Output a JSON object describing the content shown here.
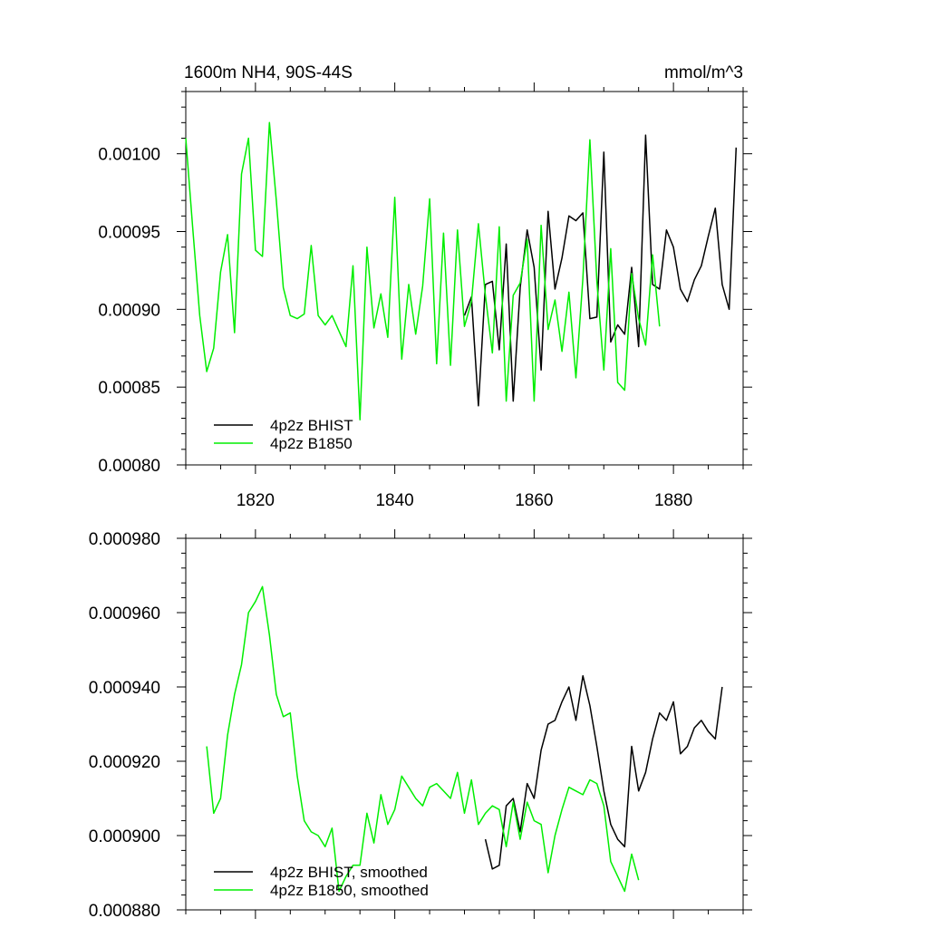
{
  "chart_data": [
    {
      "type": "line",
      "title": "1600m NH4, 90S-44S",
      "units": "mmol/m^3",
      "xlim": [
        1810,
        1890
      ],
      "ylim": [
        0.0008,
        0.00104
      ],
      "xticks": [
        1820,
        1840,
        1860,
        1880
      ],
      "xtick_labels": [
        "1820",
        "1840",
        "1860",
        "1880"
      ],
      "yticks": [
        0.0008,
        0.00085,
        0.0009,
        0.00095,
        0.001
      ],
      "ytick_labels": [
        "0.00080",
        "0.00085",
        "0.00090",
        "0.00095",
        "0.00100"
      ],
      "grid": false,
      "legend_position": "bottom-left",
      "series": [
        {
          "name": "4p2z BHIST",
          "color": "#000000",
          "x0": 1850,
          "values": [
            0.000896,
            0.000908,
            0.000838,
            0.000916,
            0.000918,
            0.000874,
            0.000942,
            0.000841,
            0.000914,
            0.000951,
            0.000927,
            0.000861,
            0.000963,
            0.000913,
            0.000933,
            0.00096,
            0.000957,
            0.000962,
            0.000894,
            0.000895,
            0.001001,
            0.000879,
            0.00089,
            0.000884,
            0.000927,
            0.000876,
            0.001012,
            0.000916,
            0.000913,
            0.000951,
            0.00094,
            0.000913,
            0.000905,
            0.000919,
            0.000928,
            0.000947,
            0.000965,
            0.000916,
            0.0009,
            0.001004
          ]
        },
        {
          "name": "4p2z B1850",
          "color": "#00ee00",
          "x0": 1810,
          "values": [
            0.00101,
            0.000952,
            0.000896,
            0.00086,
            0.000875,
            0.000924,
            0.000948,
            0.000885,
            0.000987,
            0.00101,
            0.000938,
            0.000934,
            0.00102,
            0.00097,
            0.000914,
            0.000896,
            0.000894,
            0.000897,
            0.000941,
            0.000896,
            0.00089,
            0.000896,
            0.000886,
            0.000876,
            0.000928,
            0.000829,
            0.00094,
            0.000888,
            0.00091,
            0.000882,
            0.000972,
            0.000868,
            0.000916,
            0.000884,
            0.000915,
            0.000971,
            0.000865,
            0.000949,
            0.000864,
            0.000951,
            0.000889,
            0.000905,
            0.000955,
            0.000909,
            0.000872,
            0.000953,
            0.000841,
            0.000909,
            0.000917,
            0.000945,
            0.000841,
            0.000954,
            0.000887,
            0.000906,
            0.000873,
            0.000911,
            0.000856,
            0.00092,
            0.001009,
            0.000918,
            0.000861,
            0.000939,
            0.000853,
            0.000848,
            0.000923,
            0.000894,
            0.000877,
            0.000935,
            0.000889
          ]
        }
      ]
    },
    {
      "type": "line",
      "title": "",
      "xlim": [
        1810,
        1890
      ],
      "ylim": [
        0.00088,
        0.00098
      ],
      "xticks": [
        1820,
        1840,
        1860,
        1880
      ],
      "yticks": [
        0.00088,
        0.0009,
        0.00092,
        0.00094,
        0.00096,
        0.00098
      ],
      "ytick_labels": [
        "0.000880",
        "0.000900",
        "0.000920",
        "0.000940",
        "0.000960",
        "0.000980"
      ],
      "grid": false,
      "legend_position": "bottom-left",
      "series": [
        {
          "name": "4p2z BHIST, smoothed",
          "color": "#000000",
          "x0": 1853,
          "values": [
            0.000899,
            0.000891,
            0.000892,
            0.000908,
            0.00091,
            0.000901,
            0.000914,
            0.00091,
            0.000923,
            0.00093,
            0.000931,
            0.000936,
            0.00094,
            0.000931,
            0.000943,
            0.000935,
            0.000924,
            0.000912,
            0.000903,
            0.000899,
            0.000897,
            0.000924,
            0.000912,
            0.000917,
            0.000926,
            0.000933,
            0.000931,
            0.000936,
            0.000922,
            0.000924,
            0.000929,
            0.000931,
            0.000928,
            0.000926,
            0.00094
          ]
        },
        {
          "name": "4p2z B1850, smoothed",
          "color": "#00ee00",
          "x0": 1813,
          "values": [
            0.000924,
            0.000906,
            0.00091,
            0.000927,
            0.000938,
            0.000946,
            0.00096,
            0.000963,
            0.000967,
            0.000954,
            0.000938,
            0.000932,
            0.000933,
            0.000916,
            0.000904,
            0.000901,
            0.0009,
            0.000897,
            0.000902,
            0.000885,
            0.000889,
            0.000892,
            0.000892,
            0.000906,
            0.000898,
            0.000911,
            0.000903,
            0.000907,
            0.000916,
            0.000913,
            0.00091,
            0.000908,
            0.000913,
            0.000914,
            0.000912,
            0.00091,
            0.000917,
            0.000906,
            0.000915,
            0.000903,
            0.000906,
            0.000908,
            0.000907,
            0.000897,
            0.000909,
            0.000899,
            0.000909,
            0.000904,
            0.000903,
            0.00089,
            0.0009,
            0.000907,
            0.000913,
            0.000912,
            0.000911,
            0.000915,
            0.000914,
            0.000908,
            0.000893,
            0.000889,
            0.000885,
            0.000895,
            0.000888
          ]
        }
      ]
    }
  ]
}
